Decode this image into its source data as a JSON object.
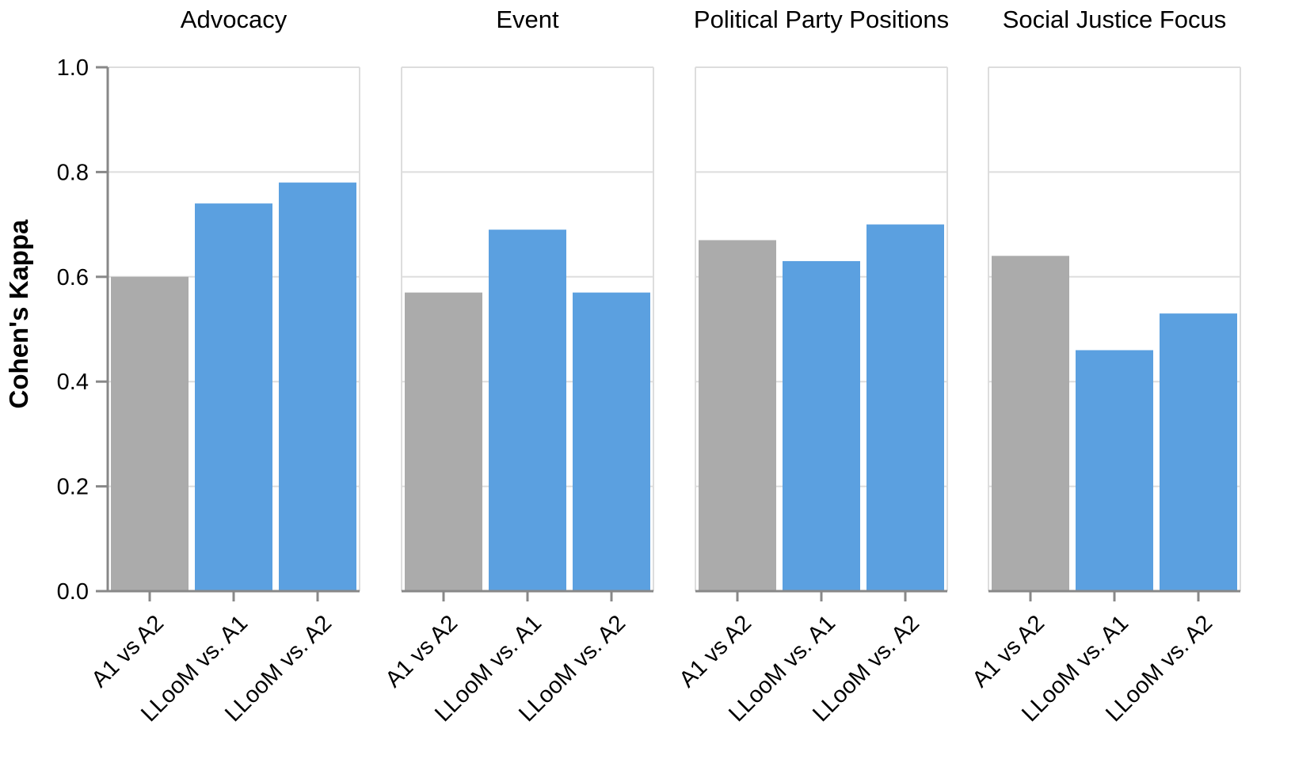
{
  "chart_data": {
    "type": "bar",
    "ylabel": "Cohen's Kappa",
    "ylim": [
      0,
      1.0
    ],
    "y_ticks": [
      "0.0",
      "0.2",
      "0.4",
      "0.6",
      "0.8",
      "1.0"
    ],
    "categories": [
      "A1 vs A2",
      "LLooM vs. A1",
      "LLooM vs. A2"
    ],
    "bar_colors": [
      "#ababab",
      "#5ba0e0",
      "#5ba0e0"
    ],
    "grid": true,
    "facets": [
      {
        "title": "Advocacy",
        "values": [
          0.6,
          0.74,
          0.78
        ]
      },
      {
        "title": "Event",
        "values": [
          0.57,
          0.69,
          0.57
        ]
      },
      {
        "title": "Political Party Positions",
        "values": [
          0.67,
          0.63,
          0.7
        ]
      },
      {
        "title": "Social Justice Focus",
        "values": [
          0.64,
          0.46,
          0.53
        ]
      }
    ]
  }
}
